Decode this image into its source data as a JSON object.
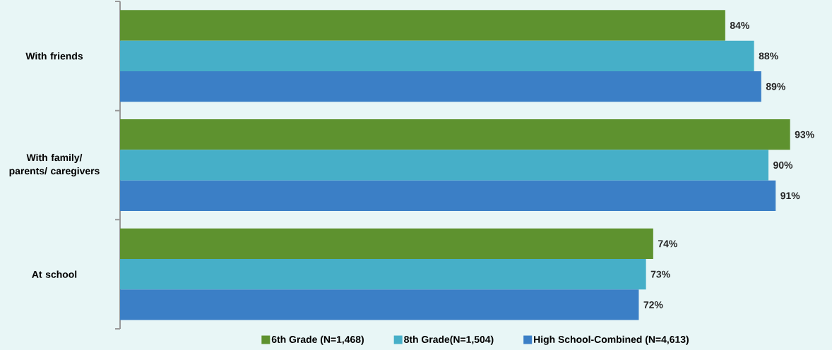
{
  "chart_data": {
    "type": "bar",
    "orientation": "horizontal",
    "categories": [
      "With friends",
      "With family/ parents/ caregivers",
      "At school"
    ],
    "series": [
      {
        "name": "6th Grade (N=1,468)",
        "color": "#5e922f",
        "values": [
          84,
          93,
          74
        ],
        "value_labels": [
          "84%",
          "93%",
          "74%"
        ]
      },
      {
        "name": "8th Grade(N=1,504)",
        "color": "#46afc8",
        "values": [
          88,
          90,
          73
        ],
        "value_labels": [
          "88%",
          "90%",
          "73%"
        ]
      },
      {
        "name": "High School-Combined (N=4,613)",
        "color": "#3b7fc6",
        "values": [
          89,
          91,
          72
        ],
        "value_labels": [
          "89%",
          "91%",
          "72%"
        ]
      }
    ],
    "legend": "bottom",
    "grid": false
  }
}
